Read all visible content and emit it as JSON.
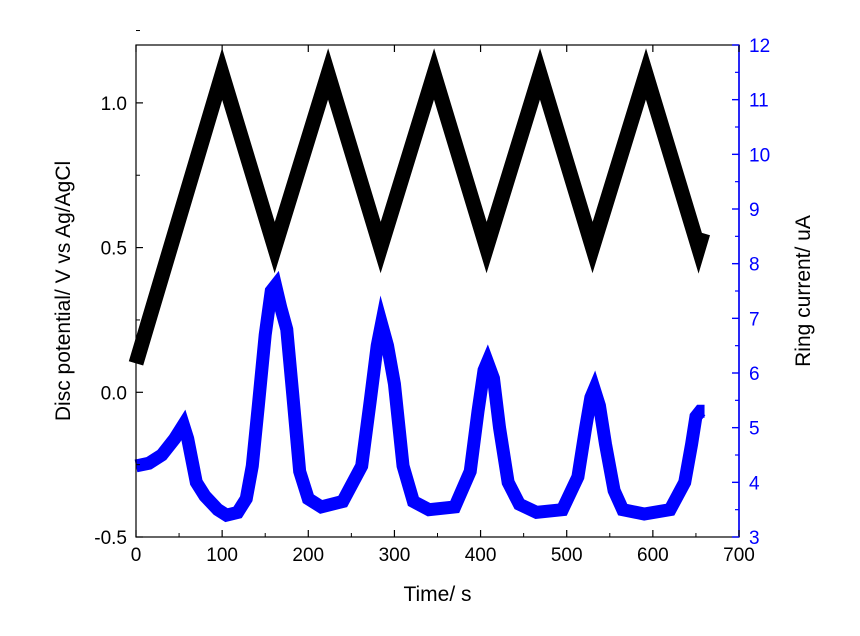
{
  "chart_data": {
    "type": "line",
    "xlabel": "Time/ s",
    "ylabel_left": "Disc potential/ V vs Ag/AgCl",
    "ylabel_right": "Ring current/ uA",
    "xlim": [
      0,
      700
    ],
    "ylim_left": [
      -0.5,
      1.2
    ],
    "ylim_right": [
      3,
      12
    ],
    "x_ticks": [
      "0",
      "100",
      "200",
      "300",
      "400",
      "500",
      "600",
      "700"
    ],
    "y_left_ticks": [
      "-0.5",
      "0.0",
      "0.5",
      "1.0"
    ],
    "y_right_ticks": [
      "3",
      "4",
      "5",
      "6",
      "7",
      "8",
      "9",
      "10",
      "11",
      "12"
    ],
    "grid": false,
    "legend": "none",
    "colors": {
      "disc": "#000000",
      "ring": "#0000ff",
      "right_axis": "#0000ff"
    },
    "series": [
      {
        "axis": "left",
        "color": "#000000",
        "x": [
          0,
          100,
          161,
          223,
          284,
          346,
          407,
          469,
          530,
          592,
          653,
          658
        ],
        "y": [
          0.1,
          1.1,
          0.5,
          1.1,
          0.5,
          1.1,
          0.5,
          1.1,
          0.5,
          1.1,
          0.5,
          0.55
        ]
      },
      {
        "axis": "right",
        "color": "#0000ff",
        "x": [
          0,
          15,
          30,
          45,
          55,
          60,
          70,
          80,
          95,
          105,
          118,
          128,
          135,
          142,
          150,
          157,
          162,
          168,
          175,
          182,
          190,
          200,
          215,
          240,
          262,
          272,
          280,
          285,
          292,
          300,
          310,
          322,
          340,
          370,
          388,
          397,
          404,
          408,
          415,
          422,
          432,
          445,
          465,
          495,
          513,
          522,
          528,
          532,
          538,
          545,
          555,
          565,
          590,
          620,
          637,
          645,
          650,
          655,
          660
        ],
        "y": [
          4.3,
          4.35,
          4.5,
          4.8,
          5.05,
          4.8,
          4.0,
          3.75,
          3.5,
          3.4,
          3.45,
          3.7,
          4.3,
          5.4,
          6.7,
          7.5,
          7.6,
          7.2,
          6.8,
          5.6,
          4.2,
          3.7,
          3.55,
          3.65,
          4.3,
          5.5,
          6.5,
          6.9,
          6.5,
          5.8,
          4.3,
          3.65,
          3.5,
          3.55,
          4.2,
          5.3,
          6.05,
          6.2,
          5.9,
          5.0,
          4.0,
          3.6,
          3.45,
          3.5,
          4.1,
          5.0,
          5.55,
          5.7,
          5.4,
          4.7,
          3.85,
          3.5,
          3.42,
          3.5,
          4.0,
          4.7,
          5.2,
          5.3,
          5.3
        ]
      }
    ]
  }
}
